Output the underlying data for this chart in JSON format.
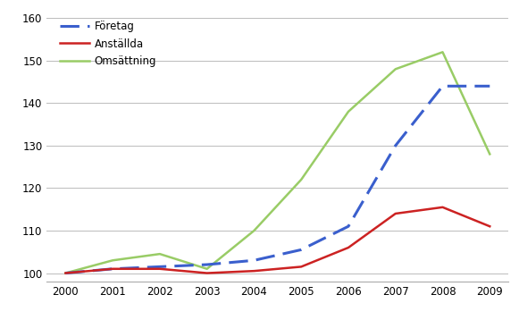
{
  "years": [
    2000,
    2001,
    2002,
    2003,
    2004,
    2005,
    2006,
    2007,
    2008,
    2009
  ],
  "foretag": [
    100,
    101,
    101.5,
    102,
    103,
    105.5,
    111,
    130,
    144,
    144
  ],
  "anstallda": [
    100,
    101,
    101,
    100,
    100.5,
    101.5,
    106,
    114,
    115.5,
    111
  ],
  "omsattning": [
    100,
    103,
    104.5,
    101,
    110,
    122,
    138,
    148,
    152,
    128
  ],
  "foretag_color": "#3a5fcd",
  "anstallda_color": "#cc2222",
  "omsattning_color": "#99cc66",
  "legend_labels": [
    "Företag",
    "Anställda",
    "Omsättning"
  ],
  "ylim": [
    98,
    162
  ],
  "yticks": [
    100,
    110,
    120,
    130,
    140,
    150,
    160
  ],
  "xlim": [
    1999.6,
    2009.4
  ],
  "bg_color": "#ffffff",
  "plot_bg_color": "#ffffff",
  "grid_color": "#bbbbbb",
  "figsize": [
    5.81,
    3.58
  ],
  "dpi": 100
}
